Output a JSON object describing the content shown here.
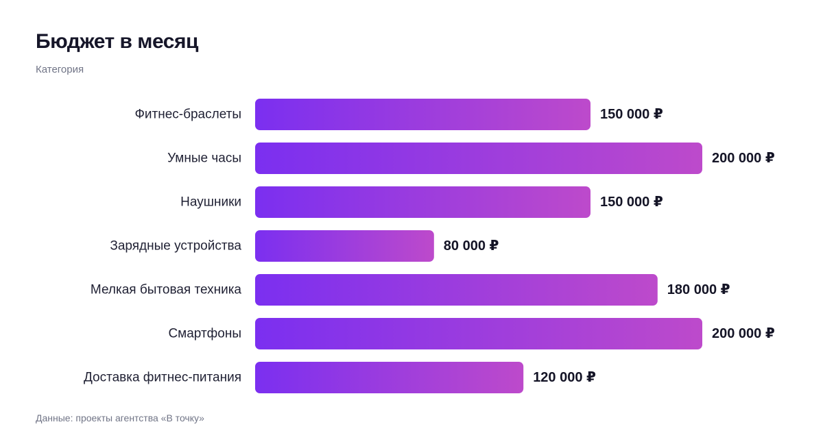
{
  "header": {
    "title": "Бюджет в месяц",
    "subtitle": "Категория"
  },
  "footer": {
    "source": "Данные: проекты агентства «В точку»"
  },
  "colors": {
    "bar_start": "#7b2ff0",
    "bar_end": "#bd4acb",
    "label": "#1f2033",
    "value": "#141426"
  },
  "chart_data": {
    "type": "bar",
    "orientation": "horizontal",
    "title": "Бюджет в месяц",
    "ylabel": "Категория",
    "currency": "₽",
    "xlim": [
      0,
      200000
    ],
    "grid": false,
    "categories": [
      "Фитнес-браслеты",
      "Умные часы",
      "Наушники",
      "Зарядные устройства",
      "Мелкая бытовая техника",
      "Смартфоны",
      "Доставка фитнес-питания"
    ],
    "values": [
      150000,
      200000,
      150000,
      80000,
      180000,
      200000,
      120000
    ],
    "value_labels": [
      "150 000 ₽",
      "200 000 ₽",
      "150 000 ₽",
      "80 000 ₽",
      "180 000 ₽",
      "200 000 ₽",
      "120 000 ₽"
    ]
  }
}
